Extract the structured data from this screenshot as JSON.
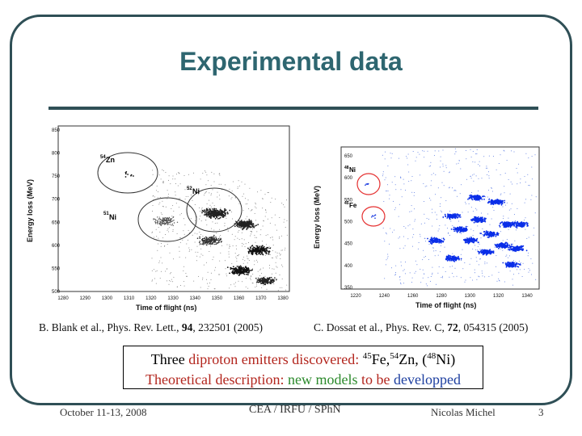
{
  "slide": {
    "title": "Experimental data",
    "left_plot": {
      "ylabel": "Energy loss (MeV)",
      "xlabel": "Time of flight (ns)",
      "yticks": [
        "850",
        "800",
        "750",
        "700",
        "650",
        "600",
        "550",
        "500"
      ],
      "xticks": [
        "1280",
        "1290",
        "1300",
        "1310",
        "1320",
        "1330",
        "1340",
        "1350",
        "1360",
        "1370",
        "1380"
      ],
      "labels": {
        "zn": "Zn",
        "zn_mass": "54",
        "ni": "Ni",
        "ni_mass": "52",
        "ni2": "Ni",
        "ni2_mass": "51"
      }
    },
    "right_plot": {
      "ylabel": "Energy loss (MeV)",
      "xlabel": "Time of flight (ns)",
      "yticks": [
        "650",
        "600",
        "550",
        "500",
        "450",
        "400",
        "350"
      ],
      "xticks": [
        "1220",
        "1240",
        "1260",
        "1280",
        "1300",
        "1320",
        "1340"
      ],
      "labels": {
        "ni": "Ni",
        "ni_mass": "48",
        "fe": "Fe",
        "fe_mass": "45"
      }
    },
    "caption_left": {
      "pre": "B. Blank et al., Phys. Rev. Lett., ",
      "vol": "94",
      "post": ", 232501 (2005)"
    },
    "caption_right": {
      "pre": "C. Dossat et al., Phys. Rev. C, ",
      "vol": "72",
      "post": ", 054315 (2005)"
    },
    "box": {
      "line1_a": "Three ",
      "line1_b": "diproton emitters",
      "line1_c": " discovered: ",
      "fe_mass": "45",
      "fe": "Fe,",
      "zn_mass": "54",
      "zn": "Zn, (",
      "ni_mass": "48",
      "ni": "Ni)",
      "line2_a": "Theoretical description: ",
      "line2_b": "new models",
      "line2_c": " to be ",
      "line2_d": "developped"
    },
    "footer": {
      "date": "October 11-13, 2008",
      "org": "CEA / IRFU / SPhN",
      "author": "Nicolas Michel",
      "page": "3"
    }
  }
}
